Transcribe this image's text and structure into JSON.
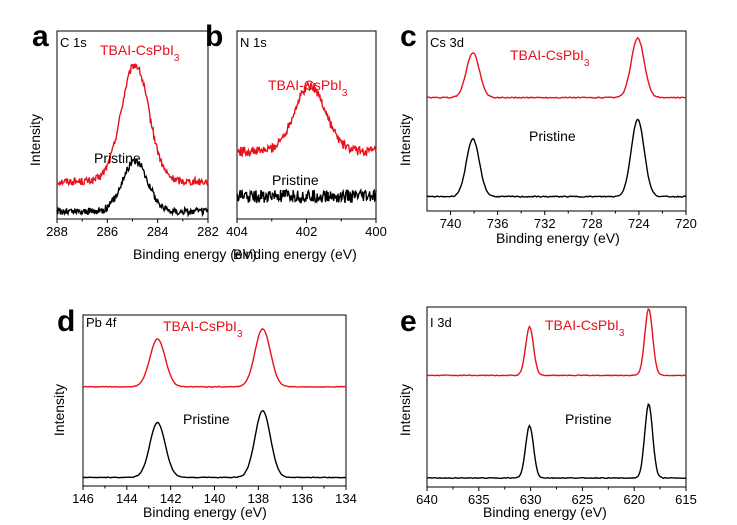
{
  "chart_data": [
    {
      "type": "line",
      "panel": "a",
      "core": "C 1s",
      "xlabel": "Binding energy (eV)",
      "ylabel": "Intensity",
      "xlim": [
        288,
        282
      ],
      "ylim": [
        0,
        1
      ],
      "xticks": [
        "288",
        "286",
        "284",
        "282"
      ],
      "xtick_values": [
        288,
        286,
        284,
        282
      ],
      "series": [
        {
          "name": "TBAI-CsPbI3",
          "label_main": "TBAI-CsPbI",
          "label_sub": "3",
          "color": "#e8111b",
          "baseline": 0.2,
          "peaks": [
            {
              "center": 284.9,
              "amp": 0.62,
              "width": 0.55
            }
          ],
          "noise": 0.02
        },
        {
          "name": "Pristine",
          "label_main": "Pristine",
          "label_sub": "",
          "color": "#000000",
          "baseline": 0.04,
          "peaks": [
            {
              "center": 284.9,
              "amp": 0.27,
              "width": 0.5
            }
          ],
          "noise": 0.02
        }
      ]
    },
    {
      "type": "line",
      "panel": "b",
      "core": "N 1s",
      "xlabel": "Binding energy (eV)",
      "ylabel": "",
      "xlim": [
        404,
        400
      ],
      "ylim": [
        0,
        1
      ],
      "xticks": [
        "404",
        "402",
        "400"
      ],
      "xtick_values": [
        404,
        402,
        400
      ],
      "series": [
        {
          "name": "TBAI-CsPbI3",
          "label_main": "TBAI-CsPbI",
          "label_sub": "3",
          "color": "#e8111b",
          "baseline": 0.36,
          "peaks": [
            {
              "center": 401.9,
              "amp": 0.35,
              "width": 0.45
            }
          ],
          "noise": 0.025
        },
        {
          "name": "Pristine",
          "label_main": "Pristine",
          "label_sub": "",
          "color": "#000000",
          "baseline": 0.12,
          "peaks": [],
          "noise": 0.035
        }
      ]
    },
    {
      "type": "line",
      "panel": "c",
      "core": "Cs 3d",
      "xlabel": "Binding energy (eV)",
      "ylabel": "Intensity",
      "xlim": [
        742,
        720
      ],
      "ylim": [
        0,
        1
      ],
      "xticks": [
        "740",
        "736",
        "732",
        "728",
        "724",
        "720"
      ],
      "xtick_values": [
        740,
        736,
        732,
        728,
        724,
        720
      ],
      "series": [
        {
          "name": "TBAI-CsPbI3",
          "label_main": "TBAI-CsPbI",
          "label_sub": "3",
          "color": "#e8111b",
          "baseline": 0.63,
          "peaks": [
            {
              "center": 738.1,
              "amp": 0.25,
              "width": 0.55
            },
            {
              "center": 724.1,
              "amp": 0.33,
              "width": 0.55
            }
          ],
          "noise": 0.003
        },
        {
          "name": "Pristine",
          "label_main": "Pristine",
          "label_sub": "",
          "color": "#000000",
          "baseline": 0.08,
          "peaks": [
            {
              "center": 738.1,
              "amp": 0.32,
              "width": 0.55
            },
            {
              "center": 724.1,
              "amp": 0.43,
              "width": 0.55
            }
          ],
          "noise": 0.003
        }
      ]
    },
    {
      "type": "line",
      "panel": "d",
      "core": "Pb 4f",
      "xlabel": "Binding energy (eV)",
      "ylabel": "Intensity",
      "xlim": [
        146,
        134
      ],
      "ylim": [
        0,
        1
      ],
      "xticks": [
        "146",
        "144",
        "142",
        "140",
        "138",
        "136",
        "134"
      ],
      "xtick_values": [
        146,
        144,
        142,
        140,
        138,
        136,
        134
      ],
      "series": [
        {
          "name": "TBAI-CsPbI3",
          "label_main": "TBAI-CsPbI",
          "label_sub": "3",
          "color": "#e8111b",
          "baseline": 0.58,
          "peaks": [
            {
              "center": 142.6,
              "amp": 0.28,
              "width": 0.35
            },
            {
              "center": 137.8,
              "amp": 0.34,
              "width": 0.35
            }
          ],
          "noise": 0.002
        },
        {
          "name": "Pristine",
          "label_main": "Pristine",
          "label_sub": "",
          "color": "#000000",
          "baseline": 0.05,
          "peaks": [
            {
              "center": 142.6,
              "amp": 0.32,
              "width": 0.35
            },
            {
              "center": 137.8,
              "amp": 0.39,
              "width": 0.35
            }
          ],
          "noise": 0.002
        }
      ]
    },
    {
      "type": "line",
      "panel": "e",
      "core": "I 3d",
      "xlabel": "Binding energy (eV)",
      "ylabel": "Intensity",
      "xlim": [
        640,
        615
      ],
      "ylim": [
        0,
        1
      ],
      "xticks": [
        "640",
        "635",
        "630",
        "625",
        "620",
        "615"
      ],
      "xtick_values": [
        640,
        635,
        630,
        625,
        620,
        615
      ],
      "series": [
        {
          "name": "TBAI-CsPbI3",
          "label_main": "TBAI-CsPbI",
          "label_sub": "3",
          "color": "#e8111b",
          "baseline": 0.62,
          "peaks": [
            {
              "center": 630.1,
              "amp": 0.27,
              "width": 0.38
            },
            {
              "center": 618.6,
              "amp": 0.37,
              "width": 0.38
            }
          ],
          "noise": 0.002
        },
        {
          "name": "Pristine",
          "label_main": "Pristine",
          "label_sub": "",
          "color": "#000000",
          "baseline": 0.05,
          "peaks": [
            {
              "center": 630.1,
              "amp": 0.29,
              "width": 0.38
            },
            {
              "center": 618.6,
              "amp": 0.41,
              "width": 0.38
            }
          ],
          "noise": 0.002
        }
      ]
    }
  ]
}
